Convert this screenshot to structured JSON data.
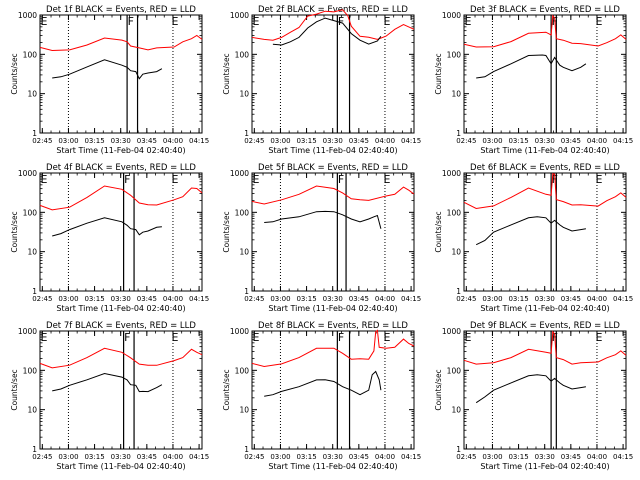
{
  "figure": {
    "ylabel": "Counts/sec",
    "xlabel": "Start Time (11-Feb-04 02:40:40)",
    "x_ticks": [
      "02:45",
      "03:00",
      "03:15",
      "03:30",
      "03:45",
      "04:00",
      "04:15"
    ],
    "y_ticks": [
      "1",
      "10",
      "100",
      "1000"
    ],
    "marker_labels": [
      "E",
      "F",
      "E"
    ],
    "colors": {
      "events": "#000000",
      "lld": "#ff0000"
    }
  },
  "chart_data": [
    {
      "type": "line",
      "title": "Det 1f BLACK = Events, RED = LLD",
      "x_unit": "minutes from 02:40:40",
      "xlim": [
        3,
        96
      ],
      "ylim": [
        1,
        1000
      ],
      "y_scale": "log",
      "markers": [
        53,
        59
      ],
      "series": [
        {
          "color": "#ff0000",
          "x": [
            3,
            10,
            20,
            30,
            40,
            50,
            53,
            55,
            60,
            65,
            70,
            80,
            85,
            90,
            93,
            96
          ],
          "y": [
            150,
            130,
            125,
            180,
            250,
            240,
            200,
            170,
            140,
            135,
            140,
            160,
            200,
            260,
            290,
            250
          ]
        },
        {
          "color": "#000000",
          "x": [
            10,
            15,
            20,
            30,
            40,
            50,
            53,
            55,
            58,
            60,
            62,
            65,
            70,
            73
          ],
          "y": [
            25,
            28,
            30,
            50,
            70,
            55,
            45,
            40,
            35,
            25,
            30,
            35,
            35,
            45
          ]
        }
      ]
    },
    {
      "type": "line",
      "title": "Det 2f BLACK = Events, RED = LLD",
      "x_unit": "minutes from 02:40:40",
      "xlim": [
        3,
        96
      ],
      "ylim": [
        1,
        1000
      ],
      "y_scale": "log",
      "markers": [
        52,
        59
      ],
      "series": [
        {
          "color": "#ff0000",
          "x": [
            3,
            10,
            15,
            20,
            25,
            30,
            35,
            40,
            45,
            50,
            55,
            58,
            60,
            65,
            70,
            75,
            80,
            85,
            90,
            96
          ],
          "y": [
            270,
            250,
            220,
            280,
            350,
            500,
            900,
            1100,
            1200,
            1250,
            1300,
            1000,
            500,
            300,
            260,
            250,
            280,
            450,
            550,
            450
          ]
        },
        {
          "color": "#000000",
          "x": [
            15,
            20,
            25,
            30,
            35,
            40,
            45,
            50,
            55,
            60,
            65,
            70,
            75,
            77
          ],
          "y": [
            180,
            180,
            200,
            280,
            450,
            700,
            800,
            750,
            600,
            350,
            220,
            190,
            210,
            300
          ]
        }
      ]
    },
    {
      "type": "line",
      "title": "Det 3f BLACK = Events, RED = LLD",
      "x_unit": "minutes from 02:40:40",
      "xlim": [
        3,
        96
      ],
      "ylim": [
        1,
        1000
      ],
      "y_scale": "log",
      "markers": [
        53,
        56
      ],
      "series": [
        {
          "color": "#ff0000",
          "x": [
            3,
            10,
            20,
            30,
            40,
            50,
            53,
            54,
            55,
            56,
            60,
            65,
            70,
            80,
            85,
            90,
            93,
            96
          ],
          "y": [
            180,
            160,
            150,
            220,
            330,
            380,
            300,
            1000,
            800,
            260,
            220,
            200,
            180,
            170,
            190,
            260,
            300,
            250
          ]
        },
        {
          "color": "#000000",
          "x": [
            10,
            15,
            20,
            30,
            40,
            48,
            50,
            53,
            55,
            58,
            60,
            65,
            70,
            73
          ],
          "y": [
            25,
            28,
            35,
            60,
            90,
            100,
            90,
            60,
            80,
            55,
            45,
            40,
            45,
            60
          ]
        }
      ]
    },
    {
      "type": "line",
      "title": "Det 4f BLACK = Events, RED = LLD",
      "x_unit": "minutes from 02:40:40",
      "xlim": [
        3,
        96
      ],
      "ylim": [
        1,
        1000
      ],
      "y_scale": "log",
      "markers": [
        51,
        57
      ],
      "series": [
        {
          "color": "#ff0000",
          "x": [
            3,
            10,
            20,
            30,
            40,
            50,
            55,
            60,
            65,
            70,
            80,
            85,
            90,
            93,
            96
          ],
          "y": [
            150,
            120,
            130,
            250,
            450,
            400,
            260,
            180,
            150,
            160,
            200,
            260,
            400,
            420,
            300
          ]
        },
        {
          "color": "#000000",
          "x": [
            10,
            15,
            20,
            30,
            40,
            50,
            53,
            55,
            58,
            60,
            62,
            65,
            70,
            73
          ],
          "y": [
            25,
            30,
            35,
            55,
            70,
            60,
            45,
            40,
            35,
            28,
            30,
            35,
            40,
            45
          ]
        }
      ]
    },
    {
      "type": "line",
      "title": "Det 5f BLACK = Events, RED = LLD",
      "x_unit": "minutes from 02:40:40",
      "xlim": [
        3,
        96
      ],
      "ylim": [
        1,
        1000
      ],
      "y_scale": "log",
      "markers": [
        52,
        57
      ],
      "series": [
        {
          "color": "#ff0000",
          "x": [
            3,
            10,
            20,
            30,
            40,
            50,
            55,
            60,
            65,
            70,
            80,
            85,
            90,
            93,
            96
          ],
          "y": [
            190,
            170,
            200,
            300,
            450,
            420,
            300,
            230,
            200,
            210,
            250,
            300,
            420,
            380,
            280
          ]
        },
        {
          "color": "#000000",
          "x": [
            10,
            15,
            20,
            30,
            40,
            45,
            50,
            55,
            60,
            65,
            70,
            73,
            75,
            77
          ],
          "y": [
            55,
            60,
            65,
            80,
            100,
            110,
            100,
            90,
            65,
            60,
            65,
            80,
            80,
            40
          ]
        }
      ]
    },
    {
      "type": "line",
      "title": "Det 6f BLACK = Events, RED = LLD",
      "x_unit": "minutes from 02:40:40",
      "xlim": [
        3,
        96
      ],
      "ylim": [
        1,
        1000
      ],
      "y_scale": "log",
      "markers": [
        53,
        56
      ],
      "series": [
        {
          "color": "#ff0000",
          "x": [
            3,
            10,
            20,
            30,
            40,
            50,
            53,
            54,
            55,
            56,
            60,
            65,
            70,
            80,
            85,
            90,
            93,
            96
          ],
          "y": [
            180,
            130,
            140,
            250,
            400,
            300,
            260,
            1000,
            900,
            220,
            180,
            160,
            150,
            150,
            190,
            260,
            300,
            250
          ]
        },
        {
          "color": "#000000",
          "x": [
            10,
            15,
            20,
            30,
            40,
            45,
            50,
            53,
            55,
            58,
            60,
            65,
            70,
            73
          ],
          "y": [
            15,
            20,
            30,
            50,
            70,
            80,
            70,
            55,
            60,
            50,
            40,
            35,
            35,
            40
          ]
        }
      ]
    },
    {
      "type": "line",
      "title": "Det 7f BLACK = Events, RED = LLD",
      "x_unit": "minutes from 02:40:40",
      "xlim": [
        3,
        96
      ],
      "ylim": [
        1,
        1000
      ],
      "y_scale": "log",
      "markers": [
        51,
        57
      ],
      "series": [
        {
          "color": "#ff0000",
          "x": [
            3,
            10,
            20,
            30,
            40,
            50,
            55,
            60,
            65,
            70,
            80,
            85,
            90,
            93,
            96
          ],
          "y": [
            150,
            120,
            130,
            220,
            350,
            300,
            200,
            150,
            130,
            140,
            170,
            220,
            330,
            300,
            240
          ]
        },
        {
          "color": "#000000",
          "x": [
            10,
            15,
            20,
            30,
            40,
            50,
            53,
            55,
            58,
            60,
            62,
            65,
            70,
            73
          ],
          "y": [
            30,
            35,
            40,
            60,
            80,
            70,
            55,
            45,
            40,
            30,
            28,
            30,
            35,
            45
          ]
        }
      ]
    },
    {
      "type": "line",
      "title": "Det 8f BLACK = Events, RED = LLD",
      "x_unit": "minutes from 02:40:40",
      "xlim": [
        3,
        96
      ],
      "ylim": [
        1,
        1000
      ],
      "y_scale": "log",
      "markers": [
        52,
        59
      ],
      "series": [
        {
          "color": "#ff0000",
          "x": [
            3,
            10,
            20,
            30,
            40,
            50,
            55,
            60,
            65,
            70,
            73,
            74,
            75,
            76,
            80,
            85,
            90,
            93,
            96
          ],
          "y": [
            150,
            130,
            140,
            220,
            350,
            380,
            260,
            200,
            190,
            200,
            300,
            1000,
            1000,
            400,
            350,
            400,
            600,
            500,
            400
          ]
        },
        {
          "color": "#000000",
          "x": [
            10,
            15,
            20,
            30,
            40,
            45,
            50,
            55,
            60,
            65,
            70,
            72,
            74,
            76,
            77
          ],
          "y": [
            22,
            25,
            28,
            40,
            55,
            60,
            50,
            40,
            30,
            25,
            30,
            80,
            90,
            60,
            30
          ]
        }
      ]
    },
    {
      "type": "line",
      "title": "Det 9f BLACK = Events, RED = LLD",
      "x_unit": "minutes from 02:40:40",
      "xlim": [
        3,
        96
      ],
      "ylim": [
        1,
        1000
      ],
      "y_scale": "log",
      "markers": [
        53,
        56
      ],
      "series": [
        {
          "color": "#ff0000",
          "x": [
            3,
            10,
            20,
            30,
            40,
            50,
            53,
            54,
            55,
            56,
            60,
            65,
            70,
            80,
            85,
            90,
            93,
            96
          ],
          "y": [
            180,
            150,
            150,
            220,
            330,
            300,
            260,
            1000,
            800,
            220,
            180,
            150,
            150,
            170,
            200,
            260,
            300,
            250
          ]
        },
        {
          "color": "#000000",
          "x": [
            10,
            15,
            20,
            30,
            40,
            45,
            50,
            53,
            55,
            58,
            60,
            65,
            70,
            73
          ],
          "y": [
            15,
            22,
            30,
            50,
            70,
            80,
            70,
            55,
            60,
            50,
            40,
            35,
            35,
            40
          ]
        }
      ]
    }
  ]
}
